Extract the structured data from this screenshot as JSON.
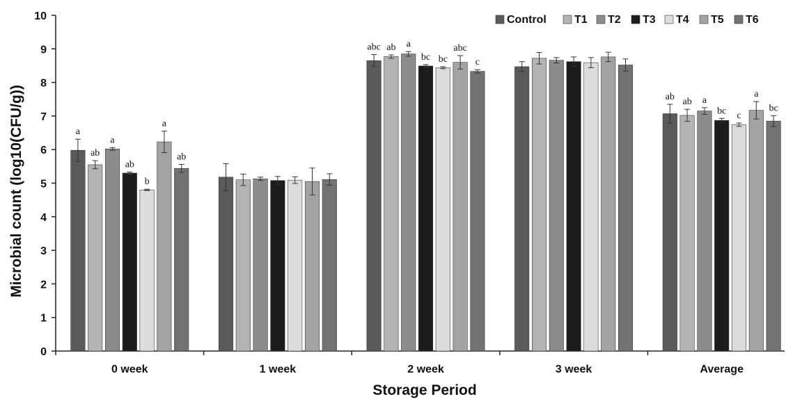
{
  "chart_data": {
    "type": "bar",
    "title": "",
    "xlabel": "Storage Period",
    "ylabel": "Microbial count (log10(CFU/g))",
    "ylim": [
      0,
      10
    ],
    "yticks": [
      0,
      1,
      2,
      3,
      4,
      5,
      6,
      7,
      8,
      9,
      10
    ],
    "grid": false,
    "legend_position": "top-right",
    "categories": [
      "0 week",
      "1 week",
      "2 week",
      "3 week",
      "Average"
    ],
    "series": [
      {
        "name": "Control",
        "color": "#5a5a5a",
        "values": [
          5.98,
          5.18,
          8.65,
          8.47,
          7.07
        ],
        "errors": [
          0.33,
          0.4,
          0.18,
          0.15,
          0.28
        ],
        "labels": [
          "a",
          "",
          "abc",
          "",
          "ab"
        ]
      },
      {
        "name": "T1",
        "color": "#b3b3b3",
        "values": [
          5.55,
          5.1,
          8.77,
          8.72,
          7.02
        ],
        "errors": [
          0.12,
          0.17,
          0.05,
          0.17,
          0.18
        ],
        "labels": [
          "ab",
          "",
          "ab",
          "",
          "ab"
        ]
      },
      {
        "name": "T2",
        "color": "#8c8c8c",
        "values": [
          6.02,
          5.13,
          8.85,
          8.66,
          7.15
        ],
        "errors": [
          0.04,
          0.05,
          0.07,
          0.08,
          0.1
        ],
        "labels": [
          "a",
          "",
          "a",
          "",
          "a"
        ]
      },
      {
        "name": "T3",
        "color": "#1c1c1c",
        "values": [
          5.3,
          5.08,
          8.49,
          8.62,
          6.87
        ],
        "errors": [
          0.03,
          0.12,
          0.04,
          0.14,
          0.06
        ],
        "labels": [
          "ab",
          "",
          "bc",
          "",
          "bc"
        ]
      },
      {
        "name": "T4",
        "color": "#dcdcdc",
        "values": [
          4.8,
          5.09,
          8.44,
          8.59,
          6.74
        ],
        "errors": [
          0.02,
          0.1,
          0.03,
          0.15,
          0.05
        ],
        "labels": [
          "b",
          "",
          "bc",
          "",
          "c"
        ]
      },
      {
        "name": "T5",
        "color": "#a3a3a3",
        "values": [
          6.23,
          5.05,
          8.6,
          8.76,
          7.17
        ],
        "errors": [
          0.32,
          0.4,
          0.2,
          0.14,
          0.26
        ],
        "labels": [
          "a",
          "",
          "abc",
          "",
          "a"
        ]
      },
      {
        "name": "T6",
        "color": "#727272",
        "values": [
          5.44,
          5.11,
          8.33,
          8.52,
          6.85
        ],
        "errors": [
          0.12,
          0.17,
          0.05,
          0.18,
          0.16
        ],
        "labels": [
          "ab",
          "",
          "c",
          "",
          "bc"
        ]
      }
    ]
  }
}
